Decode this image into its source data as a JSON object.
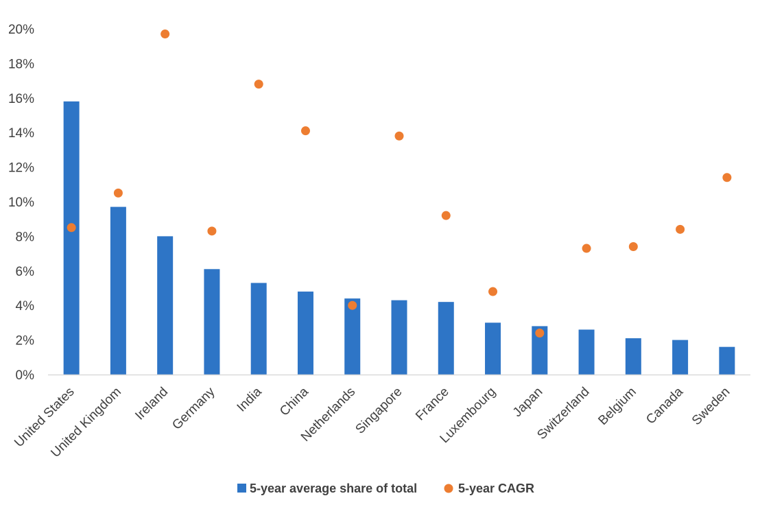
{
  "chart_data": {
    "type": "bar",
    "title": "",
    "xlabel": "",
    "ylabel": "",
    "ylim": [
      0,
      0.2
    ],
    "y_tick_step": 0.02,
    "y_format": "percent",
    "grid": false,
    "legend_position": "bottom",
    "categories": [
      "United States",
      "United Kingdom",
      "Ireland",
      "Germany",
      "India",
      "China",
      "Netherlands",
      "Singapore",
      "France",
      "Luxembourg",
      "Japan",
      "Switzerland",
      "Belgium",
      "Canada",
      "Sweden"
    ],
    "series": [
      {
        "name": "5-year average share of total",
        "type": "bar",
        "color": "#2E75C6",
        "values": [
          0.158,
          0.097,
          0.08,
          0.061,
          0.053,
          0.048,
          0.044,
          0.043,
          0.042,
          0.03,
          0.028,
          0.026,
          0.021,
          0.02,
          0.016
        ]
      },
      {
        "name": "5-year CAGR",
        "type": "scatter",
        "color": "#ED7D31",
        "values": [
          0.085,
          0.105,
          0.197,
          0.083,
          0.168,
          0.141,
          0.04,
          0.138,
          0.092,
          0.048,
          0.024,
          0.073,
          0.074,
          0.084,
          0.114
        ]
      }
    ]
  }
}
